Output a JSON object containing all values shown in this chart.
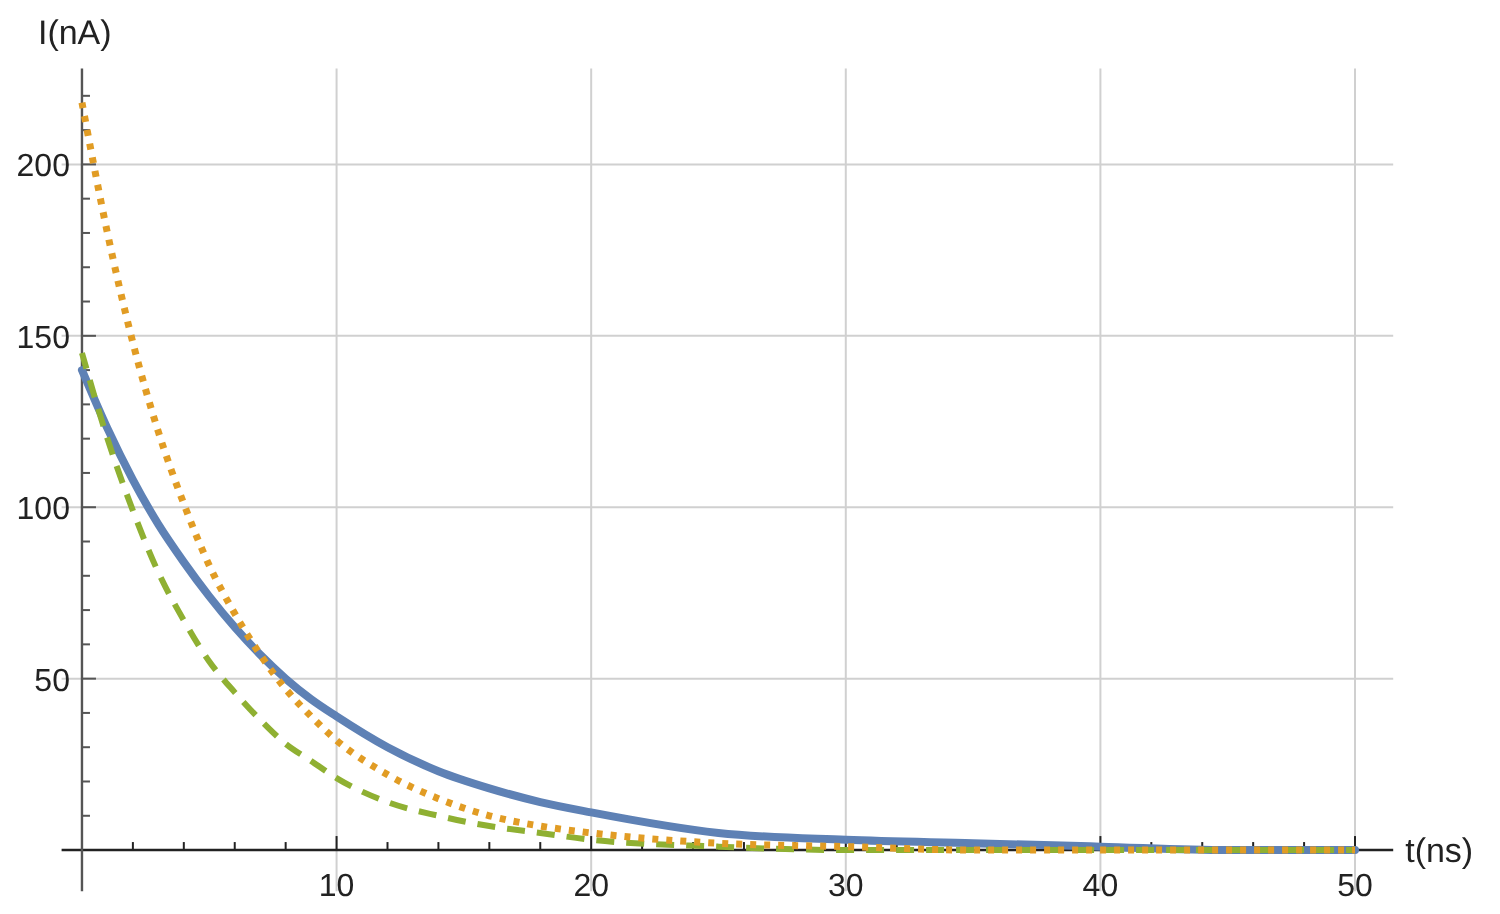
{
  "chart_data": {
    "type": "line",
    "xlabel": "t(ns)",
    "ylabel": "I(nA)",
    "x": [
      0,
      1,
      2,
      3,
      4,
      5,
      6,
      7,
      8,
      9,
      10,
      12,
      14,
      16,
      18,
      20,
      25,
      30,
      35,
      40,
      45,
      50
    ],
    "series": [
      {
        "color": "#5e81b5",
        "line_style": "solid",
        "values": [
          140,
          123,
          108,
          95,
          84,
          74,
          65,
          57,
          50,
          44,
          39,
          30,
          23,
          18,
          14,
          11,
          5,
          3,
          2,
          1,
          0,
          0
        ]
      },
      {
        "color": "#e19c24",
        "line_style": "dotted",
        "values": [
          218,
          180,
          148,
          122,
          101,
          83,
          69,
          57,
          47,
          39,
          32,
          22,
          15,
          10,
          7,
          5,
          2,
          1,
          0,
          0,
          0,
          0
        ]
      },
      {
        "color": "#8fb032",
        "line_style": "dashed",
        "values": [
          145,
          120,
          99,
          81,
          67,
          55,
          46,
          38,
          31,
          26,
          21,
          14,
          10,
          7,
          5,
          3,
          1,
          0,
          0,
          0,
          0,
          0
        ]
      }
    ],
    "xlim": [
      -0.8,
      51.5
    ],
    "ylim": [
      -12,
      228
    ],
    "xticks": [
      {
        "value": 2,
        "label": null
      },
      {
        "value": 4,
        "label": null
      },
      {
        "value": 6,
        "label": null
      },
      {
        "value": 8,
        "label": null
      },
      10,
      {
        "value": 12,
        "label": null
      },
      {
        "value": 14,
        "label": null
      },
      {
        "value": 16,
        "label": null
      },
      {
        "value": 18,
        "label": null
      },
      20,
      {
        "value": 22,
        "label": null
      },
      {
        "value": 24,
        "label": null
      },
      {
        "value": 26,
        "label": null
      },
      {
        "value": 28,
        "label": null
      },
      30,
      {
        "value": 32,
        "label": null
      },
      {
        "value": 34,
        "label": null
      },
      {
        "value": 36,
        "label": null
      },
      {
        "value": 38,
        "label": null
      },
      40,
      {
        "value": 42,
        "label": null
      },
      {
        "value": 44,
        "label": null
      },
      {
        "value": 46,
        "label": null
      },
      {
        "value": 48,
        "label": null
      },
      50
    ],
    "yticks": [
      {
        "value": 10,
        "label": null
      },
      {
        "value": 20,
        "label": null
      },
      {
        "value": 30,
        "label": null
      },
      {
        "value": 40,
        "label": null
      },
      50,
      {
        "value": 60,
        "label": null
      },
      {
        "value": 70,
        "label": null
      },
      {
        "value": 80,
        "label": null
      },
      {
        "value": 90,
        "label": null
      },
      100,
      {
        "value": 110,
        "label": null
      },
      {
        "value": 120,
        "label": null
      },
      {
        "value": 130,
        "label": null
      },
      {
        "value": 140,
        "label": null
      },
      150,
      {
        "value": 160,
        "label": null
      },
      {
        "value": 170,
        "label": null
      },
      {
        "value": 180,
        "label": null
      },
      {
        "value": 190,
        "label": null
      },
      200,
      {
        "value": 210,
        "label": null
      },
      {
        "value": 220,
        "label": null
      }
    ],
    "grid": true,
    "marker": "none"
  }
}
